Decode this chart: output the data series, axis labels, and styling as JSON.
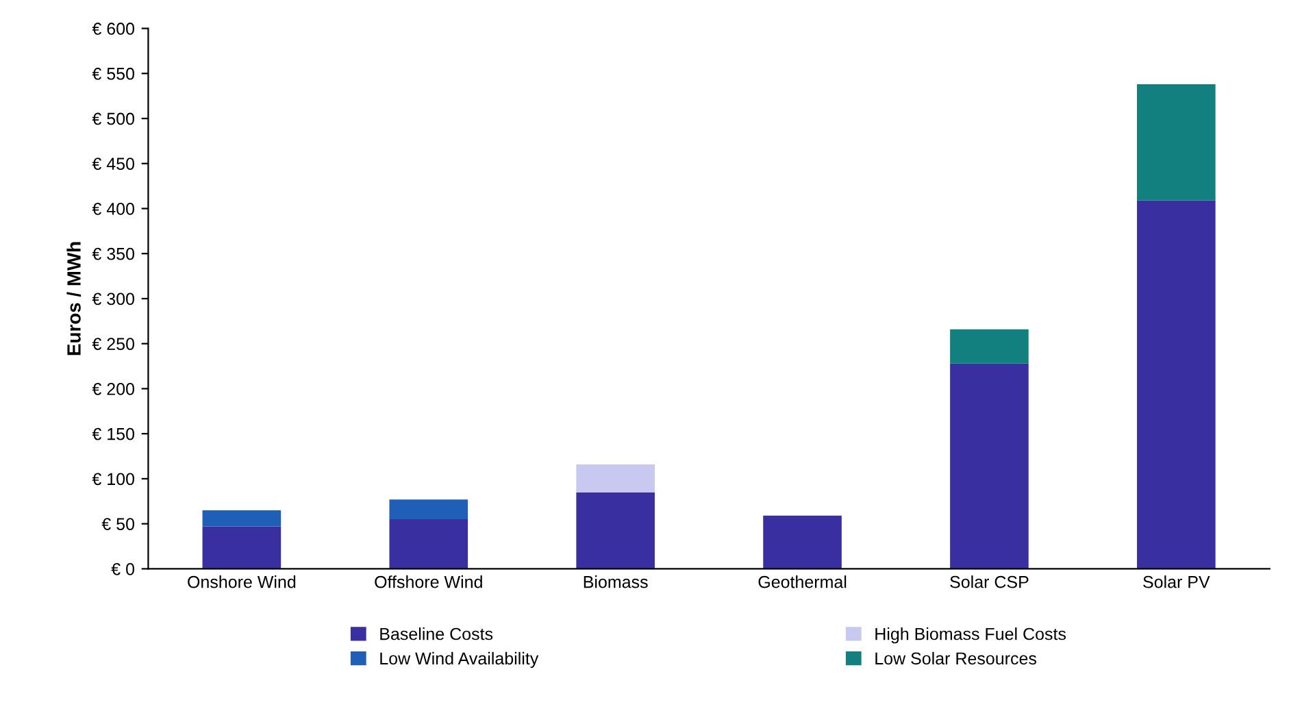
{
  "chart_data": {
    "type": "bar",
    "stacked": true,
    "ylabel": "Euros / MWh",
    "categories": [
      "Onshore Wind",
      "Offshore Wind",
      "Biomass",
      "Geothermal",
      "Solar CSP",
      "Solar PV"
    ],
    "series": [
      {
        "name": "Baseline Costs",
        "color": "#3a2fa0",
        "values": [
          47,
          55,
          85,
          59,
          228,
          409
        ]
      },
      {
        "name": "Low Wind Availability",
        "color": "#1f5fb8",
        "values": [
          18,
          22,
          null,
          null,
          null,
          null
        ]
      },
      {
        "name": "High Biomass Fuel Costs",
        "color": "#c8c8f0",
        "values": [
          null,
          null,
          31,
          null,
          null,
          null
        ]
      },
      {
        "name": "Low Solar Resources",
        "color": "#12807f",
        "values": [
          null,
          null,
          null,
          null,
          38,
          129
        ]
      }
    ],
    "ylim": [
      0,
      600
    ],
    "yticks": [
      {
        "value": 0,
        "label": "€ 0"
      },
      {
        "value": 50,
        "label": "€ 50"
      },
      {
        "value": 100,
        "label": "€ 100"
      },
      {
        "value": 150,
        "label": "€ 150"
      },
      {
        "value": 200,
        "label": "€ 200"
      },
      {
        "value": 250,
        "label": "€ 250"
      },
      {
        "value": 300,
        "label": "€ 300"
      },
      {
        "value": 350,
        "label": "€ 350"
      },
      {
        "value": 400,
        "label": "€ 400"
      },
      {
        "value": 450,
        "label": "€ 450"
      },
      {
        "value": 500,
        "label": "€ 500"
      },
      {
        "value": 550,
        "label": "€ 550"
      },
      {
        "value": 600,
        "label": "€ 600"
      }
    ],
    "grid": false,
    "legend": "bottom"
  }
}
